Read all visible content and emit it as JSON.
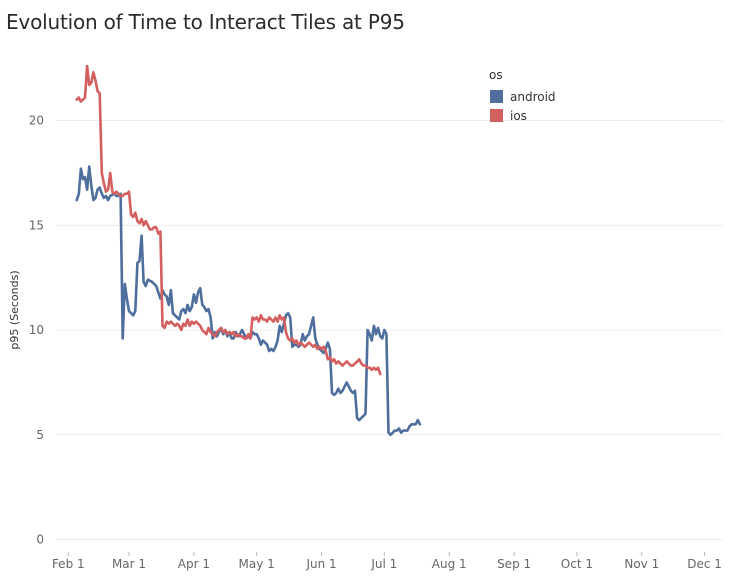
{
  "chart_data": {
    "type": "line",
    "title": "Evolution of Time to Interact Tiles at P95",
    "xlabel": "",
    "ylabel": "p95 (Seconds)",
    "ylim": [
      0,
      24
    ],
    "yticks": [
      0,
      5,
      10,
      15,
      20
    ],
    "xticks": [
      "Feb 1",
      "Mar 1",
      "Apr 1",
      "May 1",
      "Jun 1",
      "Jul 1",
      "Aug 1",
      "Sep 1",
      "Oct 1",
      "Nov 1",
      "Dec 1"
    ],
    "grid": true,
    "legend": {
      "title": "os",
      "placement": "top-right"
    },
    "series": [
      {
        "name": "android",
        "color": "#4e6e9e",
        "points": [
          [
            4,
            16.2
          ],
          [
            5,
            16.5
          ],
          [
            6,
            17.7
          ],
          [
            7,
            17.2
          ],
          [
            8,
            17.3
          ],
          [
            9,
            16.7
          ],
          [
            10,
            17.8
          ],
          [
            11,
            16.9
          ],
          [
            12,
            16.2
          ],
          [
            13,
            16.3
          ],
          [
            14,
            16.7
          ],
          [
            15,
            16.8
          ],
          [
            16,
            16.5
          ],
          [
            17,
            16.3
          ],
          [
            18,
            16.4
          ],
          [
            19,
            16.2
          ],
          [
            20,
            16.4
          ],
          [
            22,
            16.5
          ],
          [
            23,
            16.4
          ],
          [
            24,
            16.4
          ],
          [
            25,
            16.5
          ],
          [
            26,
            9.6
          ],
          [
            27,
            12.2
          ],
          [
            28,
            11.5
          ],
          [
            29,
            10.9
          ],
          [
            30,
            10.8
          ],
          [
            31,
            10.7
          ],
          [
            32,
            10.9
          ],
          [
            33,
            13.2
          ],
          [
            34,
            13.3
          ],
          [
            35,
            14.5
          ],
          [
            36,
            12.3
          ],
          [
            37,
            12.1
          ],
          [
            38,
            12.4
          ],
          [
            40,
            12.3
          ],
          [
            41,
            12.2
          ],
          [
            42,
            12.1
          ],
          [
            43,
            11.8
          ],
          [
            44,
            11.5
          ],
          [
            45,
            11.9
          ],
          [
            46,
            11.7
          ],
          [
            47,
            11.6
          ],
          [
            48,
            11.2
          ],
          [
            49,
            11.9
          ],
          [
            50,
            10.8
          ],
          [
            51,
            10.7
          ],
          [
            52,
            10.6
          ],
          [
            53,
            10.5
          ],
          [
            54,
            10.9
          ],
          [
            55,
            11.0
          ],
          [
            56,
            10.8
          ],
          [
            57,
            11.2
          ],
          [
            58,
            10.9
          ],
          [
            59,
            11.1
          ],
          [
            60,
            11.7
          ],
          [
            61,
            11.3
          ],
          [
            62,
            11.8
          ],
          [
            63,
            12.0
          ],
          [
            64,
            11.2
          ],
          [
            65,
            11.1
          ],
          [
            66,
            10.9
          ],
          [
            67,
            11.0
          ],
          [
            68,
            10.6
          ],
          [
            69,
            9.6
          ],
          [
            70,
            9.9
          ],
          [
            71,
            9.7
          ],
          [
            72,
            9.9
          ],
          [
            73,
            10.1
          ],
          [
            74,
            9.8
          ],
          [
            75,
            10.0
          ],
          [
            76,
            9.7
          ],
          [
            77,
            9.9
          ],
          [
            78,
            9.6
          ],
          [
            79,
            9.6
          ],
          [
            80,
            9.9
          ],
          [
            81,
            9.7
          ],
          [
            82,
            9.8
          ],
          [
            83,
            10.0
          ],
          [
            84,
            9.8
          ],
          [
            85,
            9.6
          ],
          [
            86,
            9.7
          ],
          [
            87,
            9.6
          ],
          [
            88,
            9.9
          ],
          [
            89,
            9.8
          ],
          [
            90,
            9.8
          ],
          [
            91,
            9.6
          ],
          [
            92,
            9.3
          ],
          [
            93,
            9.5
          ],
          [
            94,
            9.4
          ],
          [
            95,
            9.3
          ],
          [
            96,
            9.0
          ],
          [
            97,
            9.1
          ],
          [
            98,
            9.0
          ],
          [
            99,
            9.2
          ],
          [
            100,
            9.5
          ],
          [
            101,
            10.2
          ],
          [
            102,
            9.9
          ],
          [
            103,
            10.3
          ],
          [
            104,
            10.7
          ],
          [
            105,
            10.8
          ],
          [
            106,
            10.6
          ],
          [
            107,
            9.2
          ],
          [
            108,
            9.3
          ],
          [
            109,
            9.3
          ],
          [
            110,
            9.2
          ],
          [
            111,
            9.3
          ],
          [
            112,
            9.8
          ],
          [
            113,
            9.5
          ],
          [
            114,
            9.7
          ],
          [
            115,
            9.8
          ],
          [
            116,
            10.2
          ],
          [
            117,
            10.6
          ],
          [
            118,
            9.6
          ],
          [
            119,
            9.3
          ],
          [
            120,
            9.1
          ],
          [
            121,
            9.0
          ],
          [
            122,
            8.9
          ],
          [
            123,
            9.1
          ],
          [
            124,
            9.4
          ],
          [
            125,
            9.1
          ],
          [
            126,
            7.0
          ],
          [
            127,
            6.9
          ],
          [
            128,
            7.0
          ],
          [
            129,
            7.2
          ],
          [
            130,
            7.0
          ],
          [
            131,
            7.1
          ],
          [
            132,
            7.3
          ],
          [
            133,
            7.5
          ],
          [
            134,
            7.3
          ],
          [
            135,
            7.1
          ],
          [
            136,
            7.0
          ],
          [
            137,
            7.1
          ],
          [
            138,
            5.8
          ],
          [
            139,
            5.7
          ],
          [
            140,
            5.8
          ],
          [
            141,
            5.9
          ],
          [
            142,
            6.0
          ],
          [
            143,
            10.0
          ],
          [
            144,
            9.8
          ],
          [
            145,
            9.5
          ],
          [
            146,
            10.2
          ],
          [
            147,
            9.8
          ],
          [
            148,
            10.1
          ],
          [
            149,
            9.7
          ],
          [
            150,
            9.6
          ],
          [
            151,
            10.0
          ],
          [
            152,
            9.8
          ],
          [
            153,
            5.1
          ],
          [
            154,
            5.0
          ],
          [
            155,
            5.1
          ],
          [
            156,
            5.2
          ],
          [
            157,
            5.2
          ],
          [
            158,
            5.3
          ],
          [
            159,
            5.1
          ],
          [
            160,
            5.2
          ],
          [
            161,
            5.2
          ],
          [
            162,
            5.2
          ],
          [
            163,
            5.4
          ],
          [
            164,
            5.5
          ],
          [
            165,
            5.5
          ],
          [
            166,
            5.5
          ],
          [
            167,
            5.7
          ],
          [
            168,
            5.5
          ]
        ]
      },
      {
        "name": "ios",
        "color": "#d45f5f",
        "points": [
          [
            4,
            21.0
          ],
          [
            5,
            21.1
          ],
          [
            6,
            20.9
          ],
          [
            7,
            21.0
          ],
          [
            8,
            21.1
          ],
          [
            9,
            22.6
          ],
          [
            10,
            21.7
          ],
          [
            11,
            21.8
          ],
          [
            12,
            22.3
          ],
          [
            13,
            21.9
          ],
          [
            14,
            21.4
          ],
          [
            15,
            21.3
          ],
          [
            16,
            17.5
          ],
          [
            17,
            17.0
          ],
          [
            18,
            16.6
          ],
          [
            19,
            16.7
          ],
          [
            20,
            17.5
          ],
          [
            21,
            16.6
          ],
          [
            22,
            16.5
          ],
          [
            23,
            16.6
          ],
          [
            24,
            16.5
          ],
          [
            25,
            16.4
          ],
          [
            26,
            16.4
          ],
          [
            27,
            16.5
          ],
          [
            28,
            16.5
          ],
          [
            29,
            16.6
          ],
          [
            30,
            15.5
          ],
          [
            31,
            15.4
          ],
          [
            32,
            15.6
          ],
          [
            33,
            15.2
          ],
          [
            34,
            15.1
          ],
          [
            35,
            15.3
          ],
          [
            36,
            15.0
          ],
          [
            37,
            15.2
          ],
          [
            38,
            15.0
          ],
          [
            39,
            14.8
          ],
          [
            40,
            14.8
          ],
          [
            41,
            14.9
          ],
          [
            42,
            14.9
          ],
          [
            43,
            14.6
          ],
          [
            44,
            14.7
          ],
          [
            45,
            10.2
          ],
          [
            46,
            10.1
          ],
          [
            47,
            10.4
          ],
          [
            48,
            10.3
          ],
          [
            49,
            10.4
          ],
          [
            50,
            10.3
          ],
          [
            51,
            10.2
          ],
          [
            52,
            10.3
          ],
          [
            53,
            10.2
          ],
          [
            54,
            10.0
          ],
          [
            55,
            10.3
          ],
          [
            56,
            10.2
          ],
          [
            57,
            10.5
          ],
          [
            58,
            10.2
          ],
          [
            59,
            10.4
          ],
          [
            60,
            10.3
          ],
          [
            61,
            10.4
          ],
          [
            62,
            10.3
          ],
          [
            63,
            10.2
          ],
          [
            64,
            10.0
          ],
          [
            65,
            9.9
          ],
          [
            66,
            9.8
          ],
          [
            67,
            10.1
          ],
          [
            68,
            9.9
          ],
          [
            69,
            9.8
          ],
          [
            70,
            9.7
          ],
          [
            71,
            9.9
          ],
          [
            72,
            10.0
          ],
          [
            73,
            10.1
          ],
          [
            74,
            9.9
          ],
          [
            75,
            10.0
          ],
          [
            76,
            9.8
          ],
          [
            77,
            9.9
          ],
          [
            78,
            9.8
          ],
          [
            79,
            9.9
          ],
          [
            80,
            9.7
          ],
          [
            81,
            9.8
          ],
          [
            82,
            9.7
          ],
          [
            83,
            9.7
          ],
          [
            84,
            9.6
          ],
          [
            85,
            9.6
          ],
          [
            86,
            9.8
          ],
          [
            87,
            9.6
          ],
          [
            88,
            10.6
          ],
          [
            89,
            10.5
          ],
          [
            90,
            10.6
          ],
          [
            91,
            10.4
          ],
          [
            92,
            10.7
          ],
          [
            93,
            10.5
          ],
          [
            94,
            10.5
          ],
          [
            95,
            10.4
          ],
          [
            96,
            10.6
          ],
          [
            97,
            10.5
          ],
          [
            98,
            10.4
          ],
          [
            99,
            10.6
          ],
          [
            100,
            10.4
          ],
          [
            101,
            10.7
          ],
          [
            102,
            10.5
          ],
          [
            103,
            10.6
          ],
          [
            104,
            9.9
          ],
          [
            105,
            9.6
          ],
          [
            106,
            9.5
          ],
          [
            107,
            9.6
          ],
          [
            108,
            9.4
          ],
          [
            109,
            9.5
          ],
          [
            110,
            9.3
          ],
          [
            111,
            9.4
          ],
          [
            112,
            9.3
          ],
          [
            113,
            9.2
          ],
          [
            114,
            9.3
          ],
          [
            115,
            9.4
          ],
          [
            116,
            9.3
          ],
          [
            117,
            9.2
          ],
          [
            118,
            9.3
          ],
          [
            119,
            9.1
          ],
          [
            120,
            9.2
          ],
          [
            121,
            9.1
          ],
          [
            122,
            9.2
          ],
          [
            123,
            9.0
          ],
          [
            124,
            8.6
          ],
          [
            125,
            8.7
          ],
          [
            126,
            8.5
          ],
          [
            127,
            8.6
          ],
          [
            128,
            8.4
          ],
          [
            129,
            8.5
          ],
          [
            130,
            8.4
          ],
          [
            131,
            8.3
          ],
          [
            132,
            8.4
          ],
          [
            133,
            8.5
          ],
          [
            134,
            8.4
          ],
          [
            135,
            8.3
          ],
          [
            136,
            8.3
          ],
          [
            137,
            8.4
          ],
          [
            138,
            8.5
          ],
          [
            139,
            8.6
          ],
          [
            140,
            8.4
          ],
          [
            141,
            8.3
          ],
          [
            142,
            8.3
          ],
          [
            143,
            8.2
          ],
          [
            144,
            8.2
          ],
          [
            145,
            8.1
          ],
          [
            146,
            8.2
          ],
          [
            147,
            8.1
          ],
          [
            148,
            8.2
          ],
          [
            149,
            7.9
          ]
        ]
      }
    ]
  }
}
